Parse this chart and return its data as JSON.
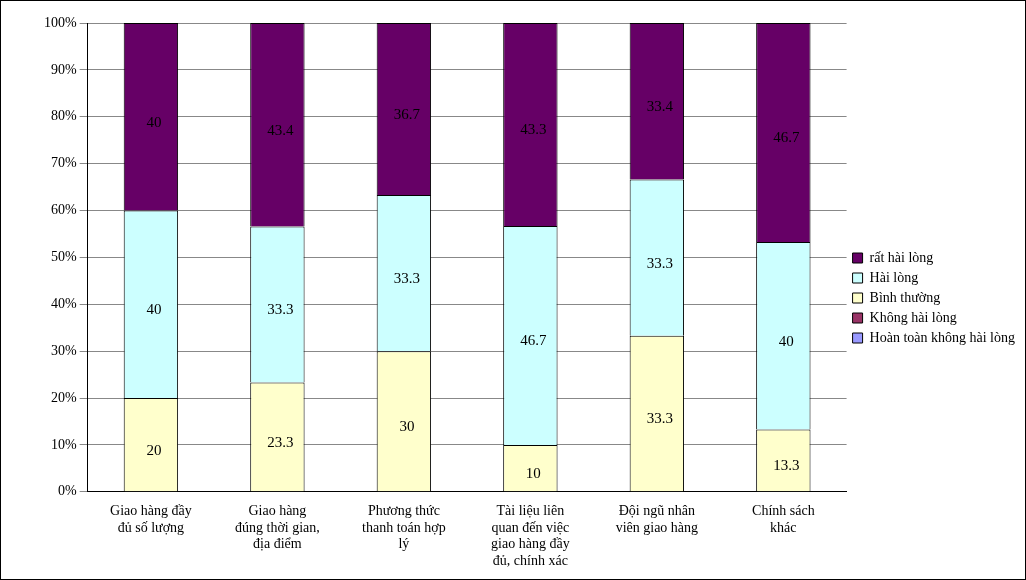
{
  "chart_data": {
    "type": "bar",
    "stacked": true,
    "grid": "y",
    "legend": "right",
    "categories": [
      "Giao hàng đầy đủ số lượng",
      "Giao hàng đúng thời gian, địa điểm",
      "Phương thức thanh toán hợp lý",
      "Tài liệu liên quan đến việc giao hàng đầy đủ, chính xác",
      "Đội ngũ nhân viên giao hàng",
      "Chính sách khác"
    ],
    "series": [
      {
        "name": "Hoàn toàn không hài lòng",
        "color": "#9999ff",
        "values": [
          0,
          0,
          0,
          0,
          0,
          0
        ],
        "value_labels": [
          null,
          null,
          null,
          null,
          null,
          null
        ]
      },
      {
        "name": "Không hài lòng",
        "color": "#993366",
        "values": [
          0,
          0,
          0,
          0,
          0,
          0
        ],
        "value_labels": [
          null,
          null,
          null,
          null,
          null,
          null
        ]
      },
      {
        "name": "Bình thường",
        "color": "#ffffcc",
        "values": [
          20,
          23.3,
          30,
          10,
          33.3,
          13.3
        ],
        "value_labels": [
          "20",
          "23.3",
          "30",
          "10",
          "33.3",
          "13.3"
        ]
      },
      {
        "name": "Hài lòng",
        "color": "#ccffff",
        "values": [
          40,
          33.3,
          33.3,
          46.7,
          33.3,
          40
        ],
        "value_labels": [
          "40",
          "33.3",
          "33.3",
          "46.7",
          "33.3",
          "40"
        ]
      },
      {
        "name": "rất hài lòng",
        "color": "#660066",
        "values": [
          40,
          43.4,
          36.7,
          43.3,
          33.4,
          46.7
        ],
        "value_labels": [
          "40",
          "43.4",
          "36.7",
          "43.3",
          "33.4",
          "46.7"
        ]
      }
    ],
    "ylim": [
      0,
      100
    ],
    "yticks": [
      {
        "value": 0,
        "label": "0%"
      },
      {
        "value": 10,
        "label": "10%"
      },
      {
        "value": 20,
        "label": "20%"
      },
      {
        "value": 30,
        "label": "30%"
      },
      {
        "value": 40,
        "label": "40%"
      },
      {
        "value": 50,
        "label": "50%"
      },
      {
        "value": 60,
        "label": "60%"
      },
      {
        "value": 70,
        "label": "70%"
      },
      {
        "value": 80,
        "label": "80%"
      },
      {
        "value": 90,
        "label": "90%"
      },
      {
        "value": 100,
        "label": "100%"
      }
    ]
  }
}
